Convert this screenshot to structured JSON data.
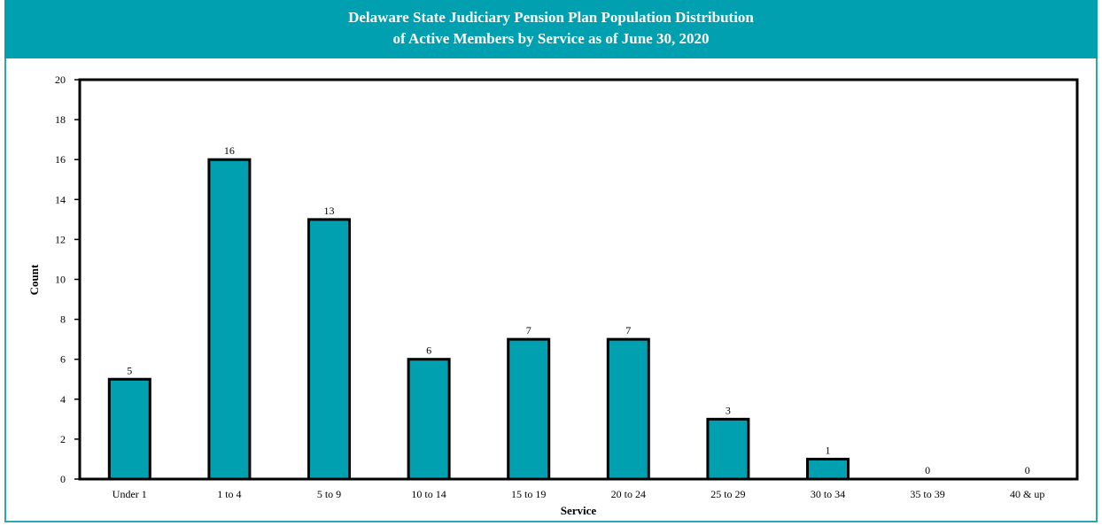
{
  "chart_data": {
    "type": "bar",
    "title_line1": "Delaware State Judiciary Pension Plan Population Distribution",
    "title_line2": "of Active Members by Service as of June 30, 2020",
    "xlabel": "Service",
    "ylabel": "Count",
    "categories": [
      "Under 1",
      "1 to 4",
      "5 to 9",
      "10 to 14",
      "15 to 19",
      "20 to 24",
      "25 to 29",
      "30 to 34",
      "35 to 39",
      "40 & up"
    ],
    "values": [
      5,
      16,
      13,
      6,
      7,
      7,
      3,
      1,
      0,
      0
    ],
    "ylim": [
      0,
      20
    ],
    "yticks": [
      0,
      2,
      4,
      6,
      8,
      10,
      12,
      14,
      16,
      18,
      20
    ],
    "grid": false,
    "legend": "none",
    "bar_color": "#00a0b0",
    "header_color": "#00a0b0"
  }
}
